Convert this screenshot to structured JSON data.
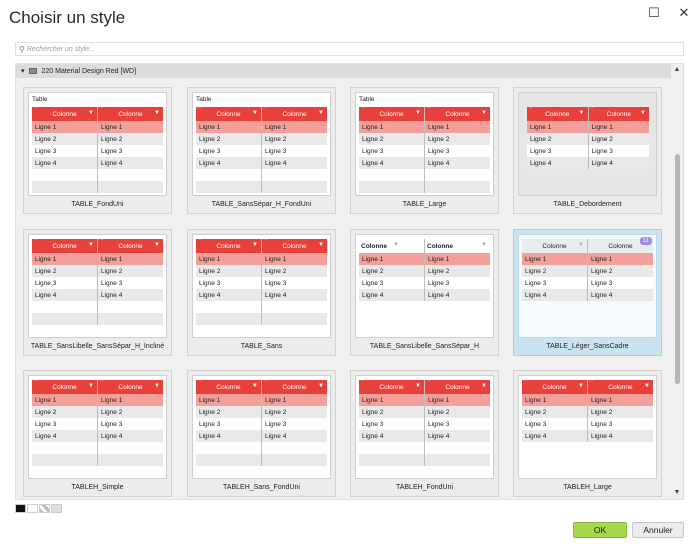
{
  "window": {
    "title": "Choisir un style",
    "maximize_glyph": "☐",
    "close_glyph": "✕"
  },
  "search": {
    "placeholder": "Rechercher un style..."
  },
  "group": {
    "label": "220 Material Design Red [WD]"
  },
  "colors": {
    "header_red": "#e8403a",
    "row_highlight": "#f4a09a",
    "row_alt": "#e9e9e9",
    "ok_green": "#a6d84e",
    "selected_bg": "#cbe3ee"
  },
  "table_text": {
    "title": "Table",
    "col": "Colonne",
    "rows": [
      "Ligne 1",
      "Ligne 2",
      "Ligne 3",
      "Ligne 4"
    ]
  },
  "styles": [
    {
      "name": "TABLE_FondUni",
      "show_title": true
    },
    {
      "name": "TABLE_SansSépar_H_FondUni",
      "show_title": true
    },
    {
      "name": "TABLE_Large",
      "show_title": true
    },
    {
      "name": "TABLE_Debordement",
      "show_title": false
    },
    {
      "name": "TABLE_SansLibelle_SansSépar_H_Incliné",
      "show_title": false
    },
    {
      "name": "TABLE_Sans",
      "show_title": false
    },
    {
      "name": "TABLE_SansLibelle_SansSépar_H",
      "show_title": false
    },
    {
      "name": "TABLE_Léger_SansCadre",
      "show_title": false,
      "selected": true,
      "badge": "11"
    },
    {
      "name": "TABLEH_Simple",
      "show_title": false
    },
    {
      "name": "TABLEH_Sans_FondUni",
      "show_title": false
    },
    {
      "name": "TABLEH_FondUni",
      "show_title": false
    },
    {
      "name": "TABLEH_Large",
      "show_title": false
    }
  ],
  "buttons": {
    "ok": "OK",
    "cancel": "Annuler"
  }
}
